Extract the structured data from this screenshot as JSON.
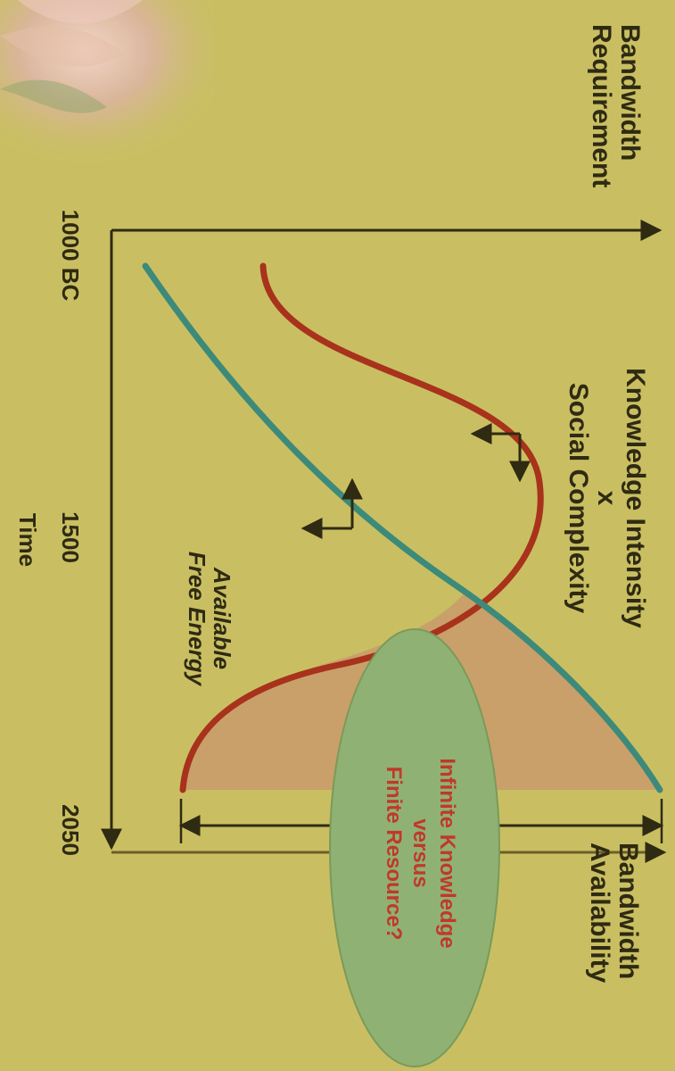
{
  "axes": {
    "y_title_top": [
      "Bandwidth",
      "Requirement"
    ],
    "y_title_bottom": [
      "Bandwidth",
      "Availability"
    ],
    "x_title": "Time",
    "ticks": [
      "1000 BC",
      "1500",
      "2050"
    ]
  },
  "curves": {
    "red_label": [
      "Knowledge Intensity",
      "x",
      "Social Complexity"
    ],
    "teal_label": [
      "Available",
      "Free Energy"
    ]
  },
  "ellipse": {
    "lines": [
      "Infinite Knowledge",
      "versus",
      "Finite Resource?"
    ]
  },
  "colors": {
    "background": "#c9bf62",
    "red_curve": "#a8321c",
    "teal_curve": "#3d8a7a",
    "gap_fill": "#c9a06a",
    "ellipse_fill": "#8fb274",
    "ellipse_text": "#c0392b",
    "axis": "#2f2a12"
  }
}
